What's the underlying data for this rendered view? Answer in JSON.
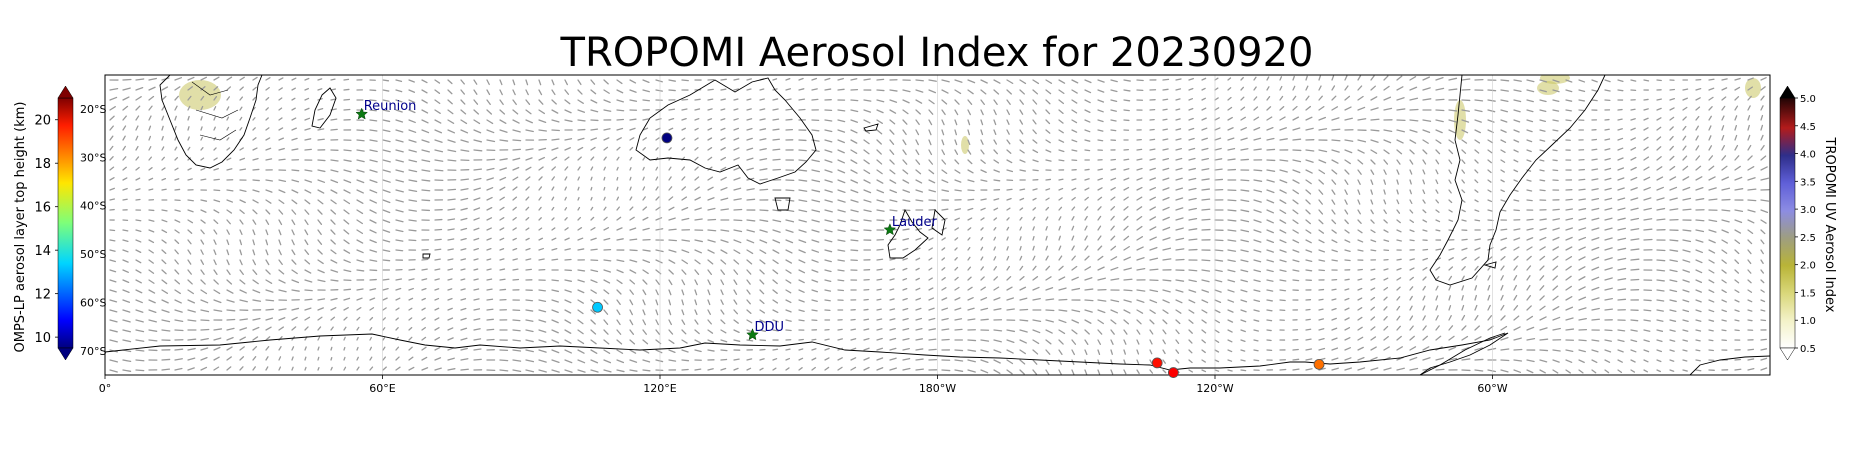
{
  "title": "TROPOMI Aerosol Index for 20230920",
  "map": {
    "projection": "equirectangular",
    "lon_range": [
      0,
      360
    ],
    "lat_range": [
      -75,
      -13
    ],
    "lon_labels": [
      "0°",
      "60°E",
      "120°E",
      "180°W",
      "120°W",
      "60°W"
    ],
    "lat_labels": [
      "20°S",
      "30°S",
      "40°S",
      "50°S",
      "60°S",
      "70°S"
    ],
    "background_color": "#ffffff",
    "coastline_color": "#000000",
    "wind_arrow_color": "#9a9a9a"
  },
  "stations": [
    {
      "name": "Reunion",
      "lon": 55.5,
      "lat": -21.1
    },
    {
      "name": "Lauder",
      "lon": 169.7,
      "lat": -45.0
    },
    {
      "name": "DDU",
      "lon": 140.0,
      "lat": -66.7
    }
  ],
  "omps_points": [
    {
      "lon": 121.5,
      "lat": -26.0,
      "height_km": 9.5
    },
    {
      "lon": 106.5,
      "lat": -61.0,
      "height_km": 13.2
    },
    {
      "lon": 227.5,
      "lat": -72.5,
      "height_km": 19.4
    },
    {
      "lon": 231.0,
      "lat": -74.5,
      "height_km": 19.6
    },
    {
      "lon": 262.5,
      "lat": -72.8,
      "height_km": 18.3
    }
  ],
  "colorbars": {
    "left": {
      "label": "OMPS-LP aerosol layer top height (km)",
      "ticks": [
        "10",
        "12",
        "14",
        "16",
        "18",
        "20"
      ],
      "range": [
        9.5,
        21
      ],
      "colormap": "jet"
    },
    "right": {
      "label": "TROPOMI UV Aerosol Index",
      "ticks": [
        "0.5",
        "1.0",
        "1.5",
        "2.0",
        "2.5",
        "3.0",
        "3.5",
        "4.0",
        "4.5",
        "5.0"
      ],
      "range": [
        0.5,
        5.0
      ],
      "colors": [
        "#ffffff",
        "#f1f0c0",
        "#d9d77a",
        "#b9b437",
        "#9d9d75",
        "#8a8ade",
        "#6a6ae8",
        "#2d2d8e",
        "#b21a1a",
        "#250505"
      ]
    }
  }
}
